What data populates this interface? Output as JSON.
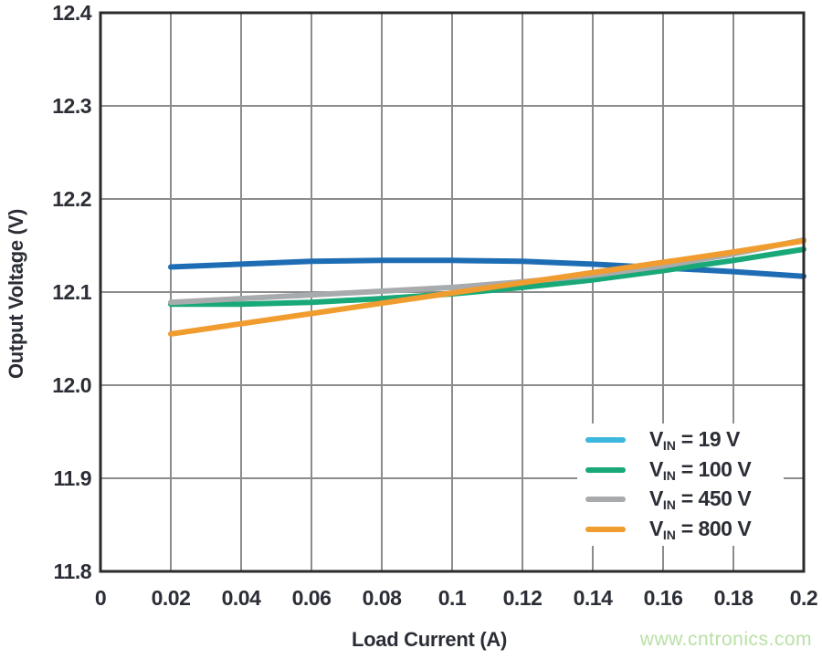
{
  "watermark": {
    "text": "www.cntronics.com",
    "color": "#b9e0a6"
  },
  "chart_data": {
    "type": "line",
    "title": "",
    "xlabel": "Load Current (A)",
    "ylabel": "Output Voltage (V)",
    "xlim": [
      0,
      0.2
    ],
    "ylim": [
      11.8,
      12.4
    ],
    "grid": true,
    "legend_position": "lower right",
    "grid_color": "#8c8c8c",
    "axis_color": "#2b2b2b",
    "tick_label_color": "#2b2e36",
    "x_tick_values": [
      0,
      0.02,
      0.04,
      0.06,
      0.08,
      0.1,
      0.12,
      0.14,
      0.16,
      0.18,
      0.2
    ],
    "x_tick_labels": [
      "0",
      "0.02",
      "0.04",
      "0.06",
      "0.08",
      "0.1",
      "0.12",
      "0.14",
      "0.16",
      "0.18",
      "0.2"
    ],
    "y_tick_values": [
      11.8,
      11.9,
      12.0,
      12.1,
      12.2,
      12.3,
      12.4
    ],
    "y_tick_labels": [
      "11.8",
      "11.9",
      "12.0",
      "12.1",
      "12.2",
      "12.3",
      "12.4"
    ],
    "x": [
      0.02,
      0.04,
      0.06,
      0.08,
      0.1,
      0.12,
      0.14,
      0.16,
      0.18,
      0.2
    ],
    "series": [
      {
        "name": "VIN = 19 V",
        "label_prefix": "V",
        "label_sub": "IN",
        "label_suffix": " = 19 V",
        "line_color": "#1e6db4",
        "swatch_color": "#3cb8dc",
        "values": [
          12.127,
          12.13,
          12.133,
          12.134,
          12.134,
          12.133,
          12.13,
          12.126,
          12.122,
          12.117
        ]
      },
      {
        "name": "VIN = 100 V",
        "label_prefix": "V",
        "label_sub": "IN",
        "label_suffix": " = 100 V",
        "line_color": "#19a878",
        "swatch_color": "#19a878",
        "values": [
          12.087,
          12.087,
          12.089,
          12.093,
          12.098,
          12.105,
          12.113,
          12.123,
          12.134,
          12.146
        ]
      },
      {
        "name": "VIN = 450 V",
        "label_prefix": "V",
        "label_sub": "IN",
        "label_suffix": " = 450 V",
        "line_color": "#a8abad",
        "swatch_color": "#a8abad",
        "values": [
          12.089,
          12.093,
          12.097,
          12.101,
          12.105,
          12.111,
          12.118,
          12.128,
          12.141,
          12.156
        ]
      },
      {
        "name": "VIN = 800 V",
        "label_prefix": "V",
        "label_sub": "IN",
        "label_suffix": " = 800 V",
        "line_color": "#f09c2e",
        "swatch_color": "#f09c2e",
        "values": [
          12.055,
          12.066,
          12.077,
          12.088,
          12.099,
          12.11,
          12.121,
          12.132,
          12.143,
          12.155
        ]
      }
    ]
  }
}
